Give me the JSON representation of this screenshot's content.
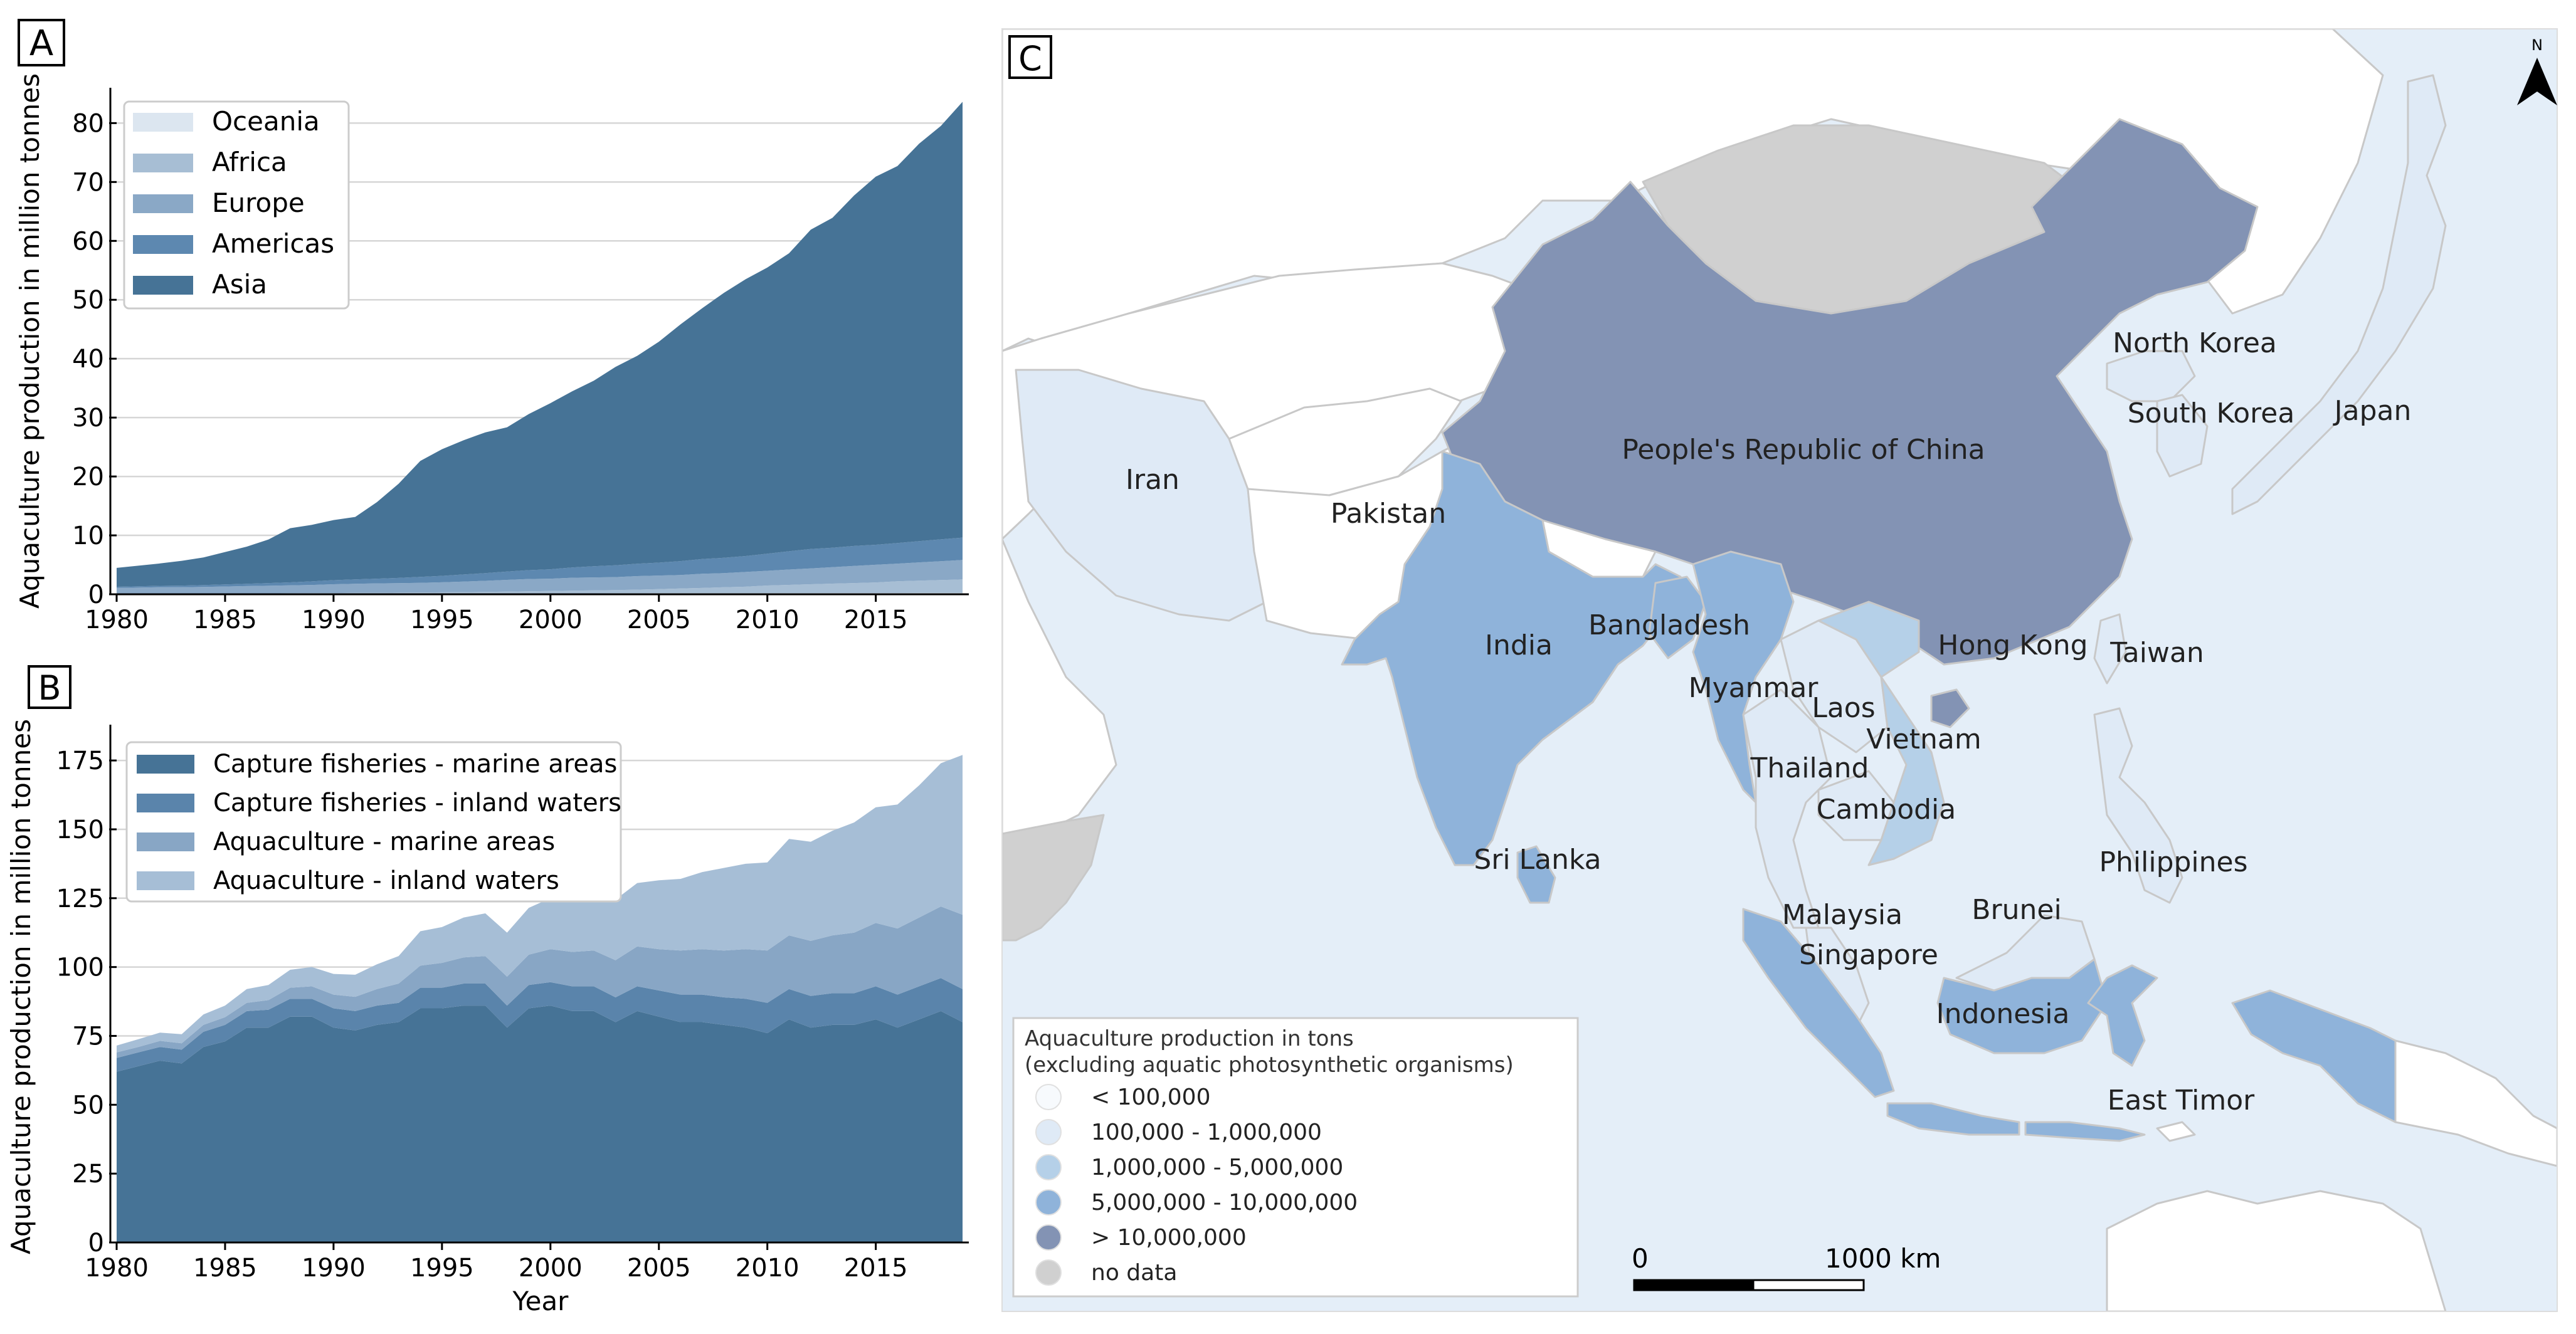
{
  "chart_data": [
    {
      "panel_label": "A",
      "type": "area",
      "stacked": true,
      "title": "",
      "xlabel": "",
      "ylabel": "Aquaculture production in million tonnes",
      "xlim": [
        1980,
        2019
      ],
      "ylim": [
        0,
        86
      ],
      "xticks": [
        1980,
        1985,
        1990,
        1995,
        2000,
        2005,
        2010,
        2015
      ],
      "yticks": [
        0,
        10,
        20,
        30,
        40,
        50,
        60,
        70,
        80
      ],
      "grid": "horizontal",
      "legend_position": "top-left",
      "legend_order": [
        "Oceania",
        "Africa",
        "Europe",
        "Americas",
        "Asia"
      ],
      "x": [
        1980,
        1981,
        1982,
        1983,
        1984,
        1985,
        1986,
        1987,
        1988,
        1989,
        1990,
        1991,
        1992,
        1993,
        1994,
        1995,
        1996,
        1997,
        1998,
        1999,
        2000,
        2001,
        2002,
        2003,
        2004,
        2005,
        2006,
        2007,
        2008,
        2009,
        2010,
        2011,
        2012,
        2013,
        2014,
        2015,
        2016,
        2017,
        2018,
        2019
      ],
      "series": [
        {
          "name": "Oceania",
          "color": "#dce6f0",
          "values": [
            0.05,
            0.05,
            0.06,
            0.06,
            0.07,
            0.07,
            0.08,
            0.08,
            0.09,
            0.1,
            0.1,
            0.11,
            0.11,
            0.12,
            0.12,
            0.13,
            0.14,
            0.14,
            0.15,
            0.15,
            0.15,
            0.16,
            0.16,
            0.17,
            0.17,
            0.18,
            0.18,
            0.18,
            0.19,
            0.19,
            0.19,
            0.2,
            0.2,
            0.21,
            0.21,
            0.21,
            0.21,
            0.22,
            0.22,
            0.22
          ]
        },
        {
          "name": "Africa",
          "color": "#a7bed4",
          "values": [
            0.03,
            0.03,
            0.03,
            0.04,
            0.04,
            0.05,
            0.06,
            0.07,
            0.08,
            0.09,
            0.1,
            0.12,
            0.14,
            0.16,
            0.18,
            0.2,
            0.22,
            0.25,
            0.3,
            0.35,
            0.4,
            0.45,
            0.5,
            0.55,
            0.62,
            0.7,
            0.8,
            0.9,
            1.0,
            1.1,
            1.3,
            1.4,
            1.5,
            1.6,
            1.7,
            1.8,
            2.0,
            2.1,
            2.2,
            2.3
          ]
        },
        {
          "name": "Europe",
          "color": "#8aa8c6",
          "values": [
            1.0,
            1.05,
            1.1,
            1.1,
            1.15,
            1.2,
            1.25,
            1.3,
            1.35,
            1.4,
            1.5,
            1.55,
            1.6,
            1.6,
            1.65,
            1.7,
            1.8,
            1.9,
            2.0,
            2.1,
            2.1,
            2.2,
            2.2,
            2.2,
            2.3,
            2.3,
            2.3,
            2.4,
            2.4,
            2.5,
            2.5,
            2.6,
            2.7,
            2.8,
            2.9,
            3.0,
            3.0,
            3.1,
            3.2,
            3.3
          ]
        },
        {
          "name": "Americas",
          "color": "#5d88b0",
          "values": [
            0.2,
            0.22,
            0.25,
            0.28,
            0.3,
            0.35,
            0.4,
            0.45,
            0.5,
            0.6,
            0.7,
            0.75,
            0.8,
            0.9,
            1.0,
            1.1,
            1.2,
            1.3,
            1.4,
            1.5,
            1.6,
            1.75,
            1.9,
            2.0,
            2.1,
            2.2,
            2.35,
            2.5,
            2.6,
            2.7,
            2.9,
            3.1,
            3.3,
            3.3,
            3.4,
            3.4,
            3.5,
            3.6,
            3.7,
            3.8
          ]
        },
        {
          "name": "Asia",
          "color": "#467396",
          "values": [
            3.2,
            3.5,
            3.8,
            4.2,
            4.7,
            5.5,
            6.3,
            7.4,
            9.2,
            9.6,
            10.2,
            10.6,
            13.0,
            16.0,
            19.7,
            21.5,
            22.8,
            23.9,
            24.5,
            26.5,
            28.2,
            29.9,
            31.5,
            33.7,
            35.3,
            37.5,
            40.2,
            42.6,
            45.0,
            47.0,
            48.6,
            50.6,
            54.2,
            56.0,
            59.5,
            62.5,
            64.0,
            67.5,
            70.2,
            74.0
          ]
        }
      ]
    },
    {
      "panel_label": "B",
      "type": "area",
      "stacked": true,
      "title": "",
      "xlabel": "Year",
      "ylabel": "Aquaculture production in million tonnes",
      "xlim": [
        1980,
        2019
      ],
      "ylim": [
        0,
        188
      ],
      "xticks": [
        1980,
        1985,
        1990,
        1995,
        2000,
        2005,
        2010,
        2015
      ],
      "yticks": [
        0,
        25,
        50,
        75,
        100,
        125,
        150,
        175
      ],
      "grid": "horizontal",
      "legend_position": "top-left",
      "legend_order": [
        "Capture fisheries - marine areas",
        "Capture fisheries - inland waters",
        "Aquaculture - marine areas",
        "Aquaculture - inland waters"
      ],
      "x": [
        1980,
        1981,
        1982,
        1983,
        1984,
        1985,
        1986,
        1987,
        1988,
        1989,
        1990,
        1991,
        1992,
        1993,
        1994,
        1995,
        1996,
        1997,
        1998,
        1999,
        2000,
        2001,
        2002,
        2003,
        2004,
        2005,
        2006,
        2007,
        2008,
        2009,
        2010,
        2011,
        2012,
        2013,
        2014,
        2015,
        2016,
        2017,
        2018,
        2019
      ],
      "series": [
        {
          "name": "Capture fisheries - marine areas",
          "color": "#467396",
          "values": [
            62,
            64,
            66,
            65,
            71,
            73,
            78,
            78,
            82,
            82,
            78,
            77,
            79,
            80,
            85,
            85,
            86,
            86,
            78,
            85,
            86,
            84,
            84,
            80,
            84,
            82,
            80,
            80,
            79,
            78,
            76,
            81,
            78,
            79,
            79,
            81,
            78,
            81,
            84,
            80
          ]
        },
        {
          "name": "Capture fisheries - inland waters",
          "color": "#5a84ab",
          "values": [
            5,
            5,
            5,
            5,
            5.5,
            6,
            6,
            6.5,
            6.5,
            6.5,
            7,
            7,
            7,
            7,
            7.5,
            7.5,
            8,
            8,
            8,
            8.5,
            8.5,
            9,
            9,
            9,
            9,
            9.5,
            10,
            10,
            10,
            10.5,
            11,
            11,
            11.5,
            11.5,
            11.5,
            12,
            12,
            12,
            12,
            12
          ]
        },
        {
          "name": "Aquaculture - marine areas",
          "color": "#88a6c5",
          "values": [
            2,
            2,
            2.2,
            2.3,
            2.5,
            2.8,
            3,
            3.5,
            4,
            4.5,
            5,
            5.2,
            6,
            7,
            8,
            9,
            9.5,
            10,
            10.5,
            11,
            12,
            12.5,
            13,
            13.5,
            14.5,
            15,
            16,
            16.5,
            17,
            18,
            19,
            19.5,
            20,
            21,
            22,
            23,
            24,
            25,
            26,
            27
          ]
        },
        {
          "name": "Aquaculture - inland waters",
          "color": "#a6bed6",
          "values": [
            2.5,
            2.8,
            3,
            3.3,
            3.8,
            4.2,
            5,
            5.5,
            6.5,
            7,
            7.5,
            8,
            9,
            10,
            12.5,
            13,
            14.5,
            15.5,
            16,
            17,
            18.5,
            19.5,
            20.5,
            22,
            23,
            25,
            26,
            28,
            30,
            31,
            32,
            35,
            36,
            38,
            40,
            42,
            45,
            48,
            52,
            58
          ]
        }
      ]
    }
  ],
  "panel_a": {
    "label": "A"
  },
  "panel_b": {
    "label": "B"
  },
  "map": {
    "label": "C",
    "north_label": "N",
    "countries": {
      "china": "People's Republic of China",
      "north_korea": "North Korea",
      "south_korea": "South Korea",
      "japan": "Japan",
      "iran": "Iran",
      "pakistan": "Pakistan",
      "india": "India",
      "bangladesh": "Bangladesh",
      "hong_kong": "Hong Kong",
      "taiwan": "Taiwan",
      "myanmar": "Myanmar",
      "laos": "Laos",
      "vietnam": "Vietnam",
      "thailand": "Thailand",
      "cambodia": "Cambodia",
      "sri_lanka": "Sri Lanka",
      "philippines": "Philippines",
      "brunei": "Brunei",
      "malaysia": "Malaysia",
      "singapore": "Singapore",
      "indonesia": "Indonesia",
      "east_timor": "East Timor"
    },
    "legend": {
      "title_line1": "Aquaculture production in tons",
      "title_line2": "(excluding aquatic photosynthetic organisms)",
      "classes": [
        {
          "label": "< 100,000",
          "color": "#f7fafd"
        },
        {
          "label": "100,000 - 1,000,000",
          "color": "#dfeaf6"
        },
        {
          "label": "1,000,000 - 5,000,000",
          "color": "#b5d0e8"
        },
        {
          "label": "5,000,000 - 10,000,000",
          "color": "#8fb3da"
        },
        {
          "label": "> 10,000,000",
          "color": "#8393b4"
        },
        {
          "label": "no data",
          "color": "#d0d0d0"
        }
      ]
    },
    "scale_bar": {
      "start_label": "0",
      "end_label": "1000 km"
    },
    "colors": {
      "sea": "#e4eef8",
      "land_white": "#ffffff",
      "border": "#c8c8c8"
    }
  }
}
